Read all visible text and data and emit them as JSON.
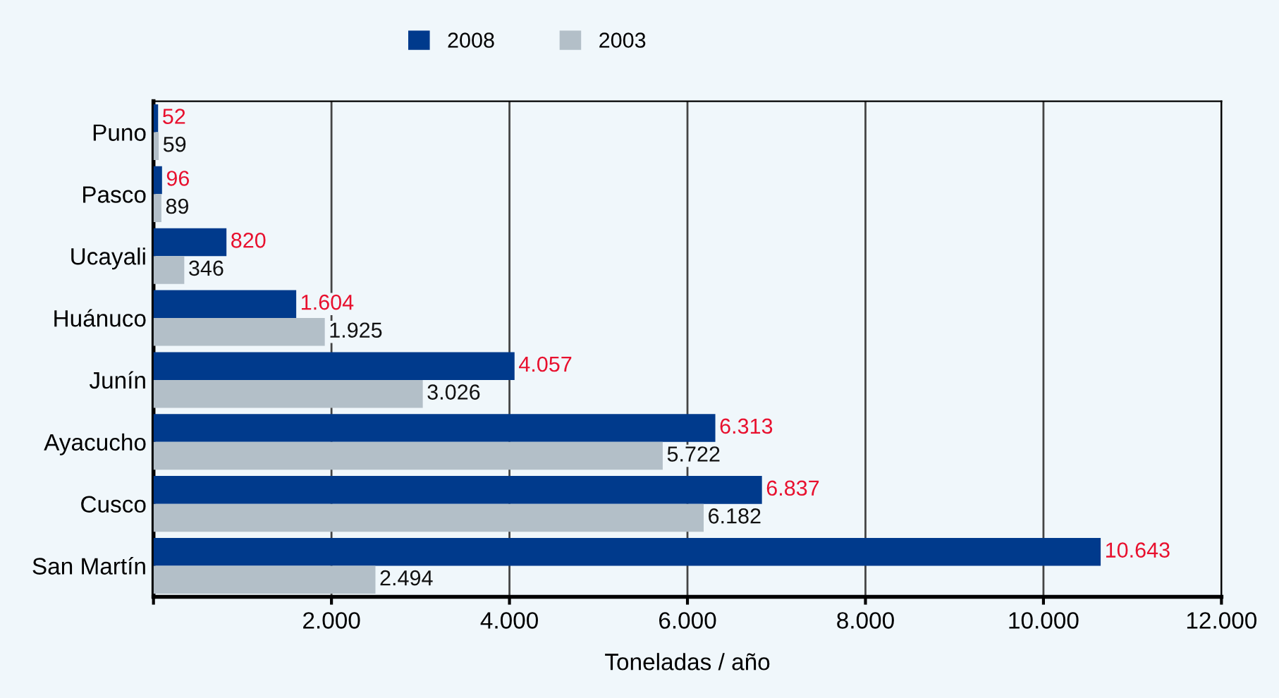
{
  "chart_data": {
    "type": "bar",
    "orientation": "horizontal",
    "xlabel": "Toneladas / año",
    "categories": [
      "Puno",
      "Pasco",
      "Ucayali",
      "Huánuco",
      "Junín",
      "Ayacucho",
      "Cusco",
      "San Martín"
    ],
    "series": [
      {
        "name": "2008",
        "color": "#003a8c",
        "values": [
          52,
          96,
          820,
          1604,
          4057,
          6313,
          6837,
          10643
        ],
        "value_labels": [
          "52",
          "96",
          "820",
          "1.604",
          "4.057",
          "6.313",
          "6.837",
          "10.643"
        ]
      },
      {
        "name": "2003",
        "color": "#b3bfc8",
        "values": [
          59,
          89,
          346,
          1925,
          3026,
          5722,
          6182,
          2494
        ],
        "value_labels": [
          "59",
          "89",
          "346",
          "1.925",
          "3.026",
          "5.722",
          "6.182",
          "2.494"
        ]
      }
    ],
    "xlim": [
      0,
      12000
    ],
    "xticks": [
      {
        "value": 0,
        "label": null
      },
      {
        "value": 2000,
        "label": "2.000"
      },
      {
        "value": 4000,
        "label": "4.000"
      },
      {
        "value": 6000,
        "label": "6.000"
      },
      {
        "value": 8000,
        "label": "8.000"
      },
      {
        "value": 10000,
        "label": "10.000"
      },
      {
        "value": 12000,
        "label": "12.000"
      }
    ],
    "grid": "x",
    "legend": "top"
  }
}
